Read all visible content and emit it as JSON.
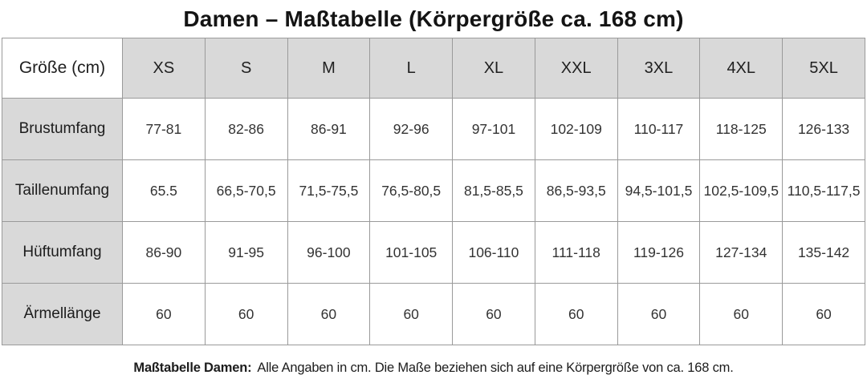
{
  "title": "Damen – Maßtabelle (Körpergröße ca. 168 cm)",
  "table": {
    "corner_label": "Größe (cm)",
    "sizes": [
      "XS",
      "S",
      "M",
      "L",
      "XL",
      "XXL",
      "3XL",
      "4XL",
      "5XL"
    ],
    "rows": [
      {
        "label": "Brustumfang",
        "values": [
          "77-81",
          "82-86",
          "86-91",
          "92-96",
          "97-101",
          "102-109",
          "110-117",
          "118-125",
          "126-133"
        ]
      },
      {
        "label": "Taillenumfang",
        "values": [
          "65.5",
          "66,5-70,5",
          "71,5-75,5",
          "76,5-80,5",
          "81,5-85,5",
          "86,5-93,5",
          "94,5-101,5",
          "102,5-109,5",
          "110,5-117,5"
        ]
      },
      {
        "label": "Hüftumfang",
        "values": [
          "86-90",
          "91-95",
          "96-100",
          "101-105",
          "106-110",
          "111-118",
          "119-126",
          "127-134",
          "135-142"
        ]
      },
      {
        "label": "Ärmellänge",
        "values": [
          "60",
          "60",
          "60",
          "60",
          "60",
          "60",
          "60",
          "60",
          "60"
        ]
      }
    ]
  },
  "footer": {
    "bold_label": "Maßtabelle Damen:",
    "text": "Alle Angaben in cm. Die Maße beziehen sich auf eine Körpergröße von ca. 168 cm."
  },
  "colors": {
    "header_fill": "#d9d9d9",
    "border": "#9a9a9a",
    "text": "#1f1f1f"
  }
}
